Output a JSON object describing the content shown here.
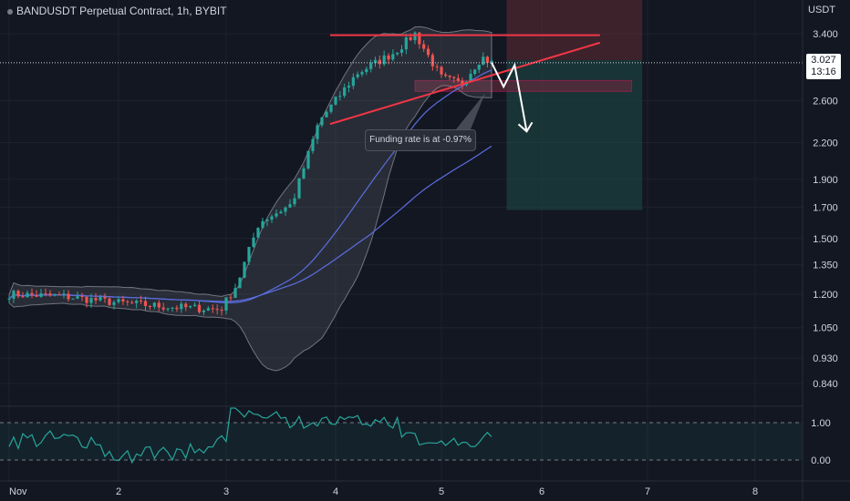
{
  "header": {
    "symbol_title": "BANDUSDT Perpetual Contract, 1h, BYBIT",
    "currency": "USDT"
  },
  "last_price": {
    "value": "3.027",
    "countdown": "13:16"
  },
  "annotation": {
    "funding_text": "Funding rate is at -0.97%"
  },
  "colors": {
    "background": "#131722",
    "up": "#26a69a",
    "down": "#ef5350",
    "band": "#9598a1",
    "ma": "#5b6ee1",
    "trendline": "#f23645",
    "oscillator": "#26a69a"
  },
  "chart_data": {
    "type": "candlestick",
    "symbol": "BANDUSDT",
    "timeframe": "1h",
    "exchange": "BYBIT",
    "y_scale": "log",
    "y_ticks": [
      "3.400",
      "2.600",
      "2.200",
      "1.900",
      "1.700",
      "1.500",
      "1.350",
      "1.200",
      "1.050",
      "0.930",
      "0.840"
    ],
    "x_ticks": [
      "Nov",
      "2",
      "3",
      "4",
      "5",
      "6",
      "7",
      "8"
    ],
    "ohlc_close_path": [
      {
        "day": 1.0,
        "close": 1.2
      },
      {
        "day": 1.5,
        "close": 1.19
      },
      {
        "day": 2.0,
        "close": 1.16
      },
      {
        "day": 2.5,
        "close": 1.14
      },
      {
        "day": 2.95,
        "close": 1.13
      },
      {
        "day": 3.1,
        "close": 1.25
      },
      {
        "day": 3.3,
        "close": 1.6
      },
      {
        "day": 3.6,
        "close": 1.72
      },
      {
        "day": 3.85,
        "close": 2.4
      },
      {
        "day": 4.2,
        "close": 2.9
      },
      {
        "day": 4.55,
        "close": 3.15
      },
      {
        "day": 4.75,
        "close": 3.4
      },
      {
        "day": 5.0,
        "close": 2.85
      },
      {
        "day": 5.2,
        "close": 2.78
      },
      {
        "day": 5.4,
        "close": 3.1
      },
      {
        "day": 5.5,
        "close": 3.027
      }
    ],
    "trendlines": [
      {
        "name": "resistance",
        "from": {
          "day": 3.95,
          "price": 3.38
        },
        "to": {
          "day": 6.55,
          "price": 3.38
        }
      },
      {
        "name": "rising support",
        "from": {
          "day": 3.95,
          "price": 2.37
        },
        "to": {
          "day": 6.55,
          "price": 3.28
        }
      }
    ],
    "zones": [
      {
        "name": "stop",
        "from_day": 5.65,
        "to_day": 6.95,
        "top": 3.95,
        "bottom": 3.06
      },
      {
        "name": "target",
        "from_day": 5.65,
        "to_day": 6.95,
        "top": 3.06,
        "bottom": 1.68
      },
      {
        "name": "demand",
        "from_day": 4.75,
        "to_day": 6.85,
        "top": 2.82,
        "bottom": 2.7
      }
    ],
    "projection": [
      {
        "day": 5.5,
        "price": 3.03
      },
      {
        "day": 5.62,
        "price": 2.75
      },
      {
        "day": 5.73,
        "price": 3.0
      },
      {
        "day": 5.85,
        "price": 2.3
      }
    ],
    "oscillator": {
      "y_ticks": [
        "1.00",
        "0.00"
      ],
      "range": [
        0,
        1
      ]
    }
  }
}
